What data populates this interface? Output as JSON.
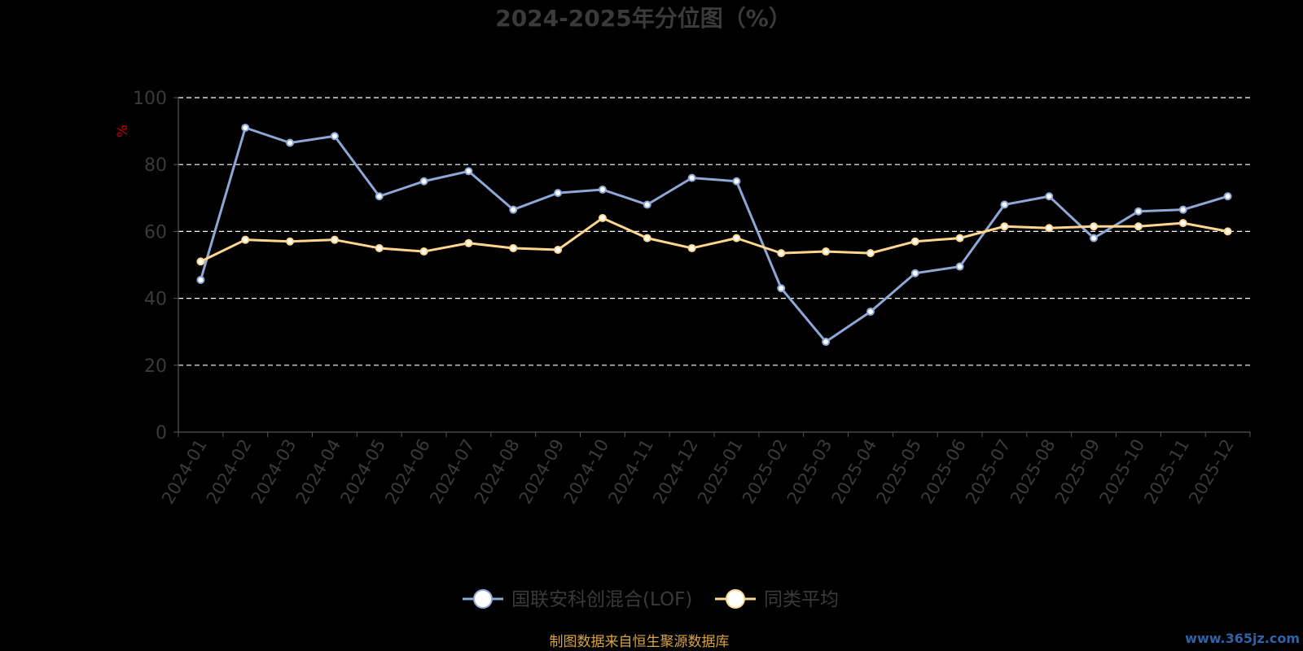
{
  "colors": {
    "series_fund": "#8da7d6",
    "series_avg": "#ffd68f",
    "marker_fill": "#ffffff",
    "grid": "#ffffff",
    "axis": "#555555",
    "text": "#3a3a3a",
    "unit_label": "#c00000",
    "source_text": "#d9a441",
    "watermark": "#2f62a8"
  },
  "source_note": "制图数据来自恒生聚源数据库",
  "watermark": "www.365jz.com",
  "legend_icon": "circle-line-marker",
  "chart_data": {
    "type": "line",
    "title": "2024-2025年分位图（%）",
    "ylabel": "%",
    "xlabel": "",
    "ylim": [
      0,
      100
    ],
    "yticks": [
      0,
      20,
      40,
      60,
      80,
      100
    ],
    "grid": true,
    "grid_style": "dashed",
    "legend_position": "bottom-center",
    "categories": [
      "2024-01",
      "2024-02",
      "2024-03",
      "2024-04",
      "2024-05",
      "2024-06",
      "2024-07",
      "2024-08",
      "2024-09",
      "2024-10",
      "2024-11",
      "2024-12",
      "2025-01",
      "2025-02",
      "2025-03",
      "2025-04",
      "2025-05",
      "2025-06",
      "2025-07",
      "2025-08",
      "2025-09",
      "2025-10",
      "2025-11",
      "2025-12"
    ],
    "series": [
      {
        "name": "国联安科创混合(LOF)",
        "color": "#8da7d6",
        "values": [
          45.5,
          91.0,
          86.5,
          88.5,
          70.5,
          75.0,
          78.0,
          66.5,
          71.5,
          72.5,
          68.0,
          76.0,
          75.0,
          43.0,
          27.0,
          36.0,
          47.5,
          49.5,
          68.0,
          70.5,
          58.0,
          66.0,
          66.5,
          70.5
        ]
      },
      {
        "name": "同类平均",
        "color": "#ffd68f",
        "values": [
          51.0,
          57.5,
          57.0,
          57.5,
          55.0,
          54.0,
          56.5,
          55.0,
          54.5,
          64.0,
          58.0,
          55.0,
          58.0,
          53.5,
          54.0,
          53.5,
          57.0,
          58.0,
          61.5,
          61.0,
          61.5,
          61.5,
          62.5,
          60.0
        ]
      }
    ]
  }
}
